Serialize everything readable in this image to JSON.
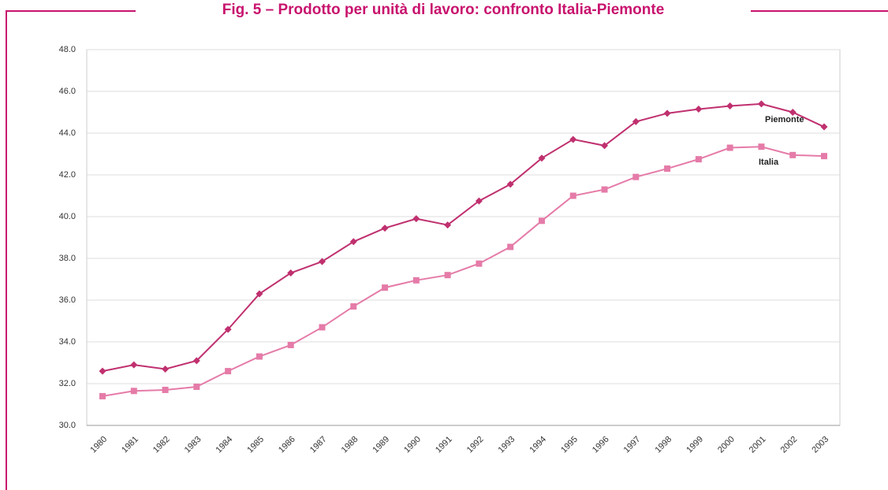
{
  "chart_data": {
    "type": "line",
    "title": "Fig. 5 – Prodotto per unità di lavoro: confronto Italia-Piemonte",
    "categories": [
      "1980",
      "1981",
      "1982",
      "1983",
      "1984",
      "1985",
      "1986",
      "1987",
      "1988",
      "1989",
      "1990",
      "1991",
      "1992",
      "1993",
      "1994",
      "1995",
      "1996",
      "1997",
      "1998",
      "1999",
      "2000",
      "2001",
      "2002",
      "2003"
    ],
    "series": [
      {
        "name": "Piemonte",
        "color": "#c0306f",
        "marker": "diamond",
        "values": [
          32.6,
          32.9,
          32.7,
          33.1,
          34.6,
          36.3,
          37.3,
          37.85,
          38.8,
          39.45,
          39.9,
          39.6,
          40.75,
          41.55,
          42.8,
          43.7,
          43.4,
          44.55,
          44.95,
          45.15,
          45.3,
          45.4,
          45.0,
          44.3
        ]
      },
      {
        "name": "Italia",
        "color": "#e57ba8",
        "marker": "square",
        "values": [
          31.4,
          31.65,
          31.7,
          31.85,
          32.6,
          33.3,
          33.85,
          34.7,
          35.7,
          36.6,
          36.95,
          37.2,
          37.75,
          38.55,
          39.8,
          41.0,
          41.3,
          41.9,
          42.3,
          42.75,
          43.3,
          43.35,
          42.95,
          42.9
        ]
      }
    ],
    "ylim": [
      30,
      48
    ],
    "yticks": [
      {
        "value": 30,
        "label": "30.0"
      },
      {
        "value": 32,
        "label": "32.0"
      },
      {
        "value": 34,
        "label": "34.0"
      },
      {
        "value": 36,
        "label": "36.0"
      },
      {
        "value": 38,
        "label": "38.0"
      },
      {
        "value": 40,
        "label": "40.0"
      },
      {
        "value": 42,
        "label": "42.0"
      },
      {
        "value": 44,
        "label": "44.0"
      },
      {
        "value": 46,
        "label": "46.0"
      },
      {
        "value": 48,
        "label": "48.0"
      }
    ],
    "grid": true
  }
}
